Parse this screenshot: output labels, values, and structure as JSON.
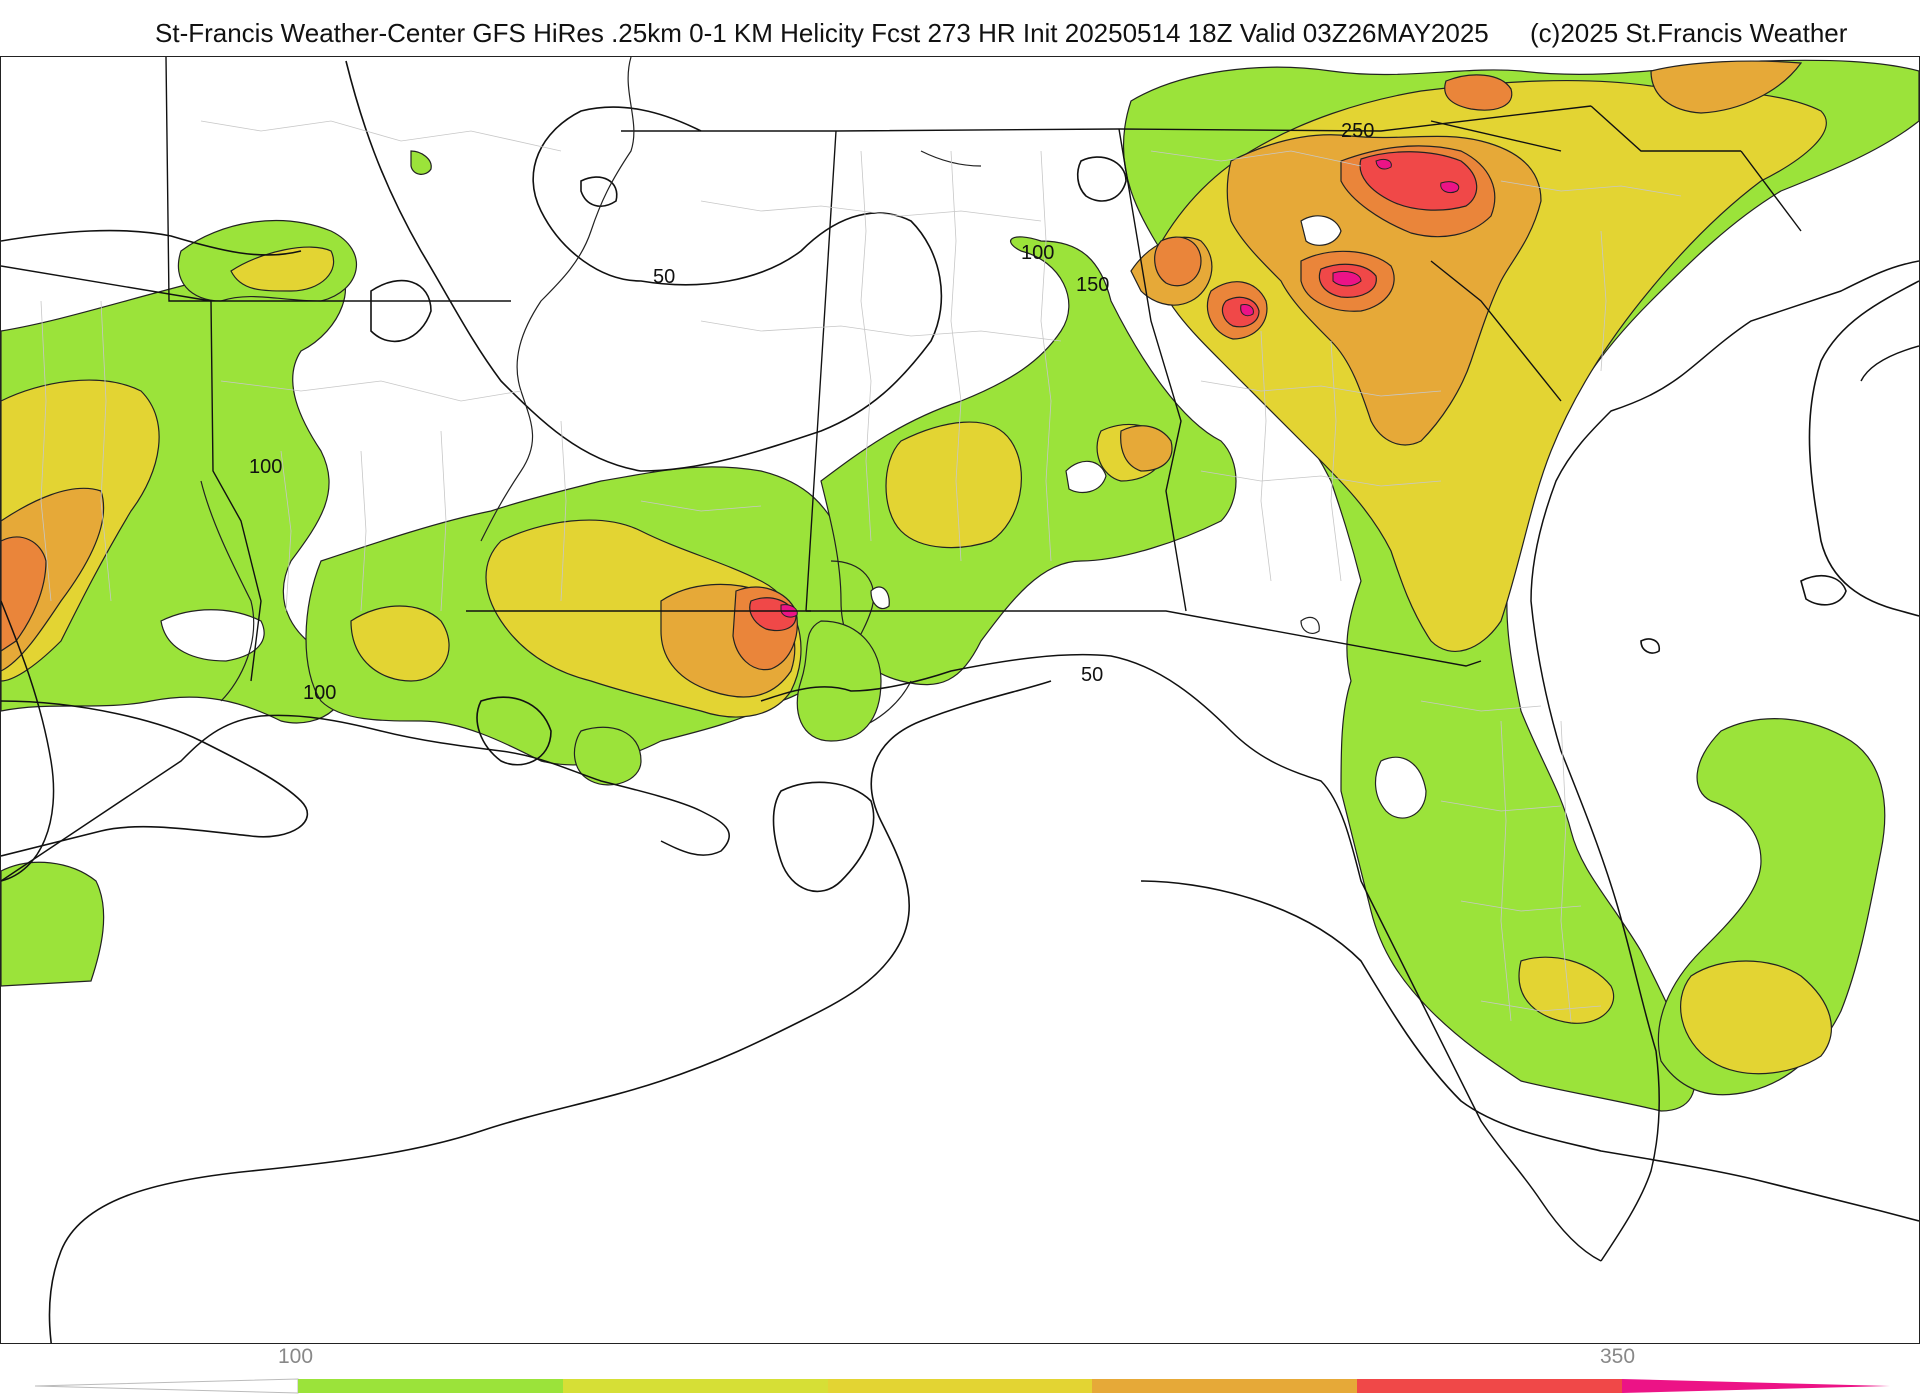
{
  "header": {
    "title": "St-Francis Weather-Center GFS HiRes .25km 0-1 KM Helicity Fcst 273 HR Init 20250514 18Z  Valid 03Z26MAY2025",
    "copyright": "(c)2025 St.Francis Weather"
  },
  "map": {
    "contour_labels": [
      "50",
      "100",
      "100",
      "100",
      "150",
      "250",
      "50"
    ]
  },
  "legend": {
    "labels": [
      "100",
      "350"
    ],
    "colors": {
      "green": "#9be33a",
      "yellow_green": "#d6df36",
      "yellow": "#e3d433",
      "orange_light": "#e6a938",
      "orange": "#ea853a",
      "red": "#f04848",
      "magenta": "#ec1386"
    }
  }
}
